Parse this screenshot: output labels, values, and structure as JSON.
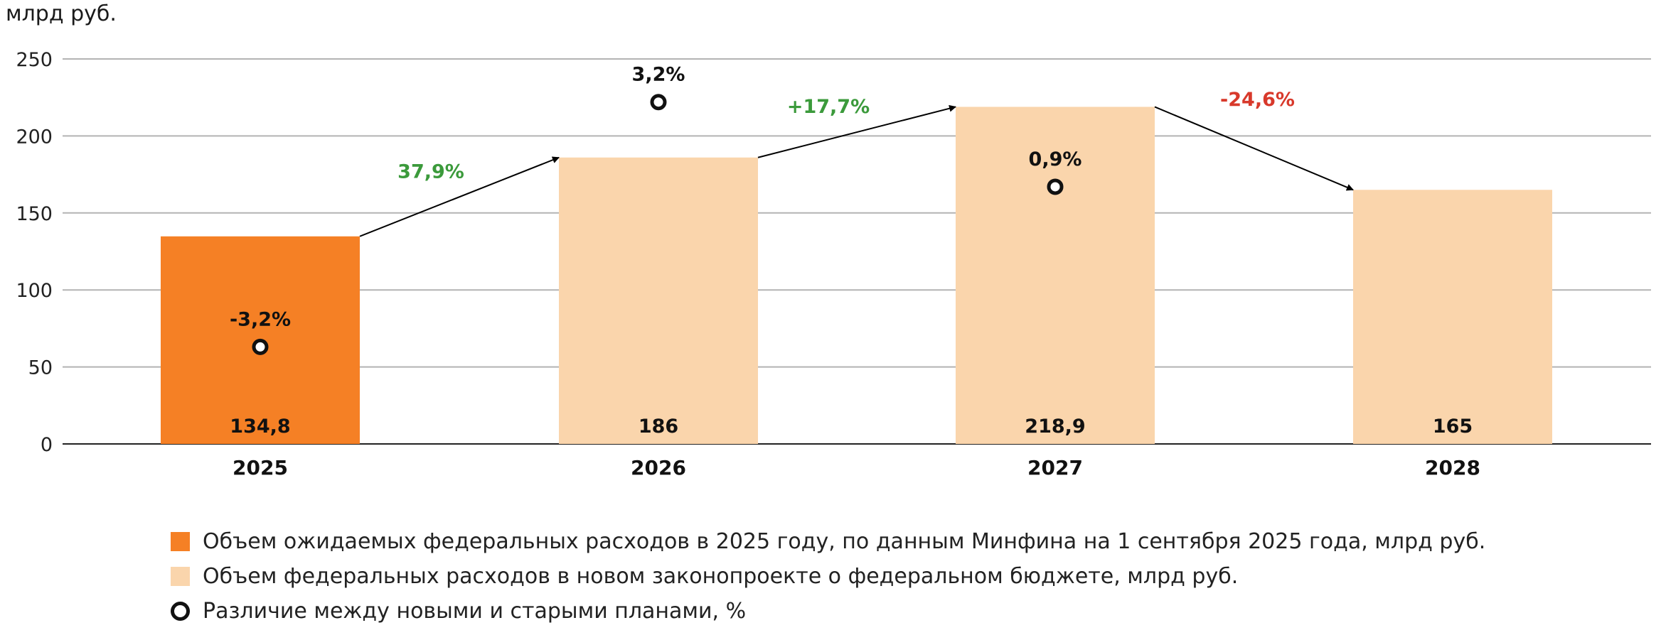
{
  "chart_data": {
    "type": "bar",
    "unit_label": "млрд руб.",
    "ylim": [
      0,
      250
    ],
    "yticks": [
      0,
      50,
      100,
      150,
      200,
      250
    ],
    "grid": true,
    "categories": [
      "2025",
      "2026",
      "2027",
      "2028"
    ],
    "series": [
      {
        "name": "Объем ожидаемых федеральных расходов в 2025 году, по данным Минфина на 1 сентября 2025 года, млрд руб.",
        "color": "#F58025",
        "values": [
          134.8,
          null,
          null,
          null
        ],
        "labels": [
          "134,8",
          "",
          "",
          ""
        ]
      },
      {
        "name": "Объем федеральных расходов в новом законопроекте о федеральном бюджете, млрд руб.",
        "color": "#FAD5AC",
        "values": [
          null,
          186,
          218.9,
          165
        ],
        "labels": [
          "",
          "186",
          "218,9",
          "165"
        ]
      },
      {
        "name": "Различие между новыми и старыми планами, %",
        "marker": "ring",
        "points": [
          {
            "category": "2025",
            "y": 63,
            "label": "-3,2%"
          },
          {
            "category": "2026",
            "y": 222,
            "label": "3,2%"
          },
          {
            "category": "2027",
            "y": 167,
            "label": "0,9%"
          }
        ]
      }
    ],
    "changes": [
      {
        "from": "2025",
        "to": "2026",
        "label": "37,9%",
        "color": "#3B9A3B"
      },
      {
        "from": "2026",
        "to": "2027",
        "label": "+17,7%",
        "color": "#3B9A3B"
      },
      {
        "from": "2027",
        "to": "2028",
        "label": "-24,6%",
        "color": "#D8392B"
      }
    ]
  }
}
